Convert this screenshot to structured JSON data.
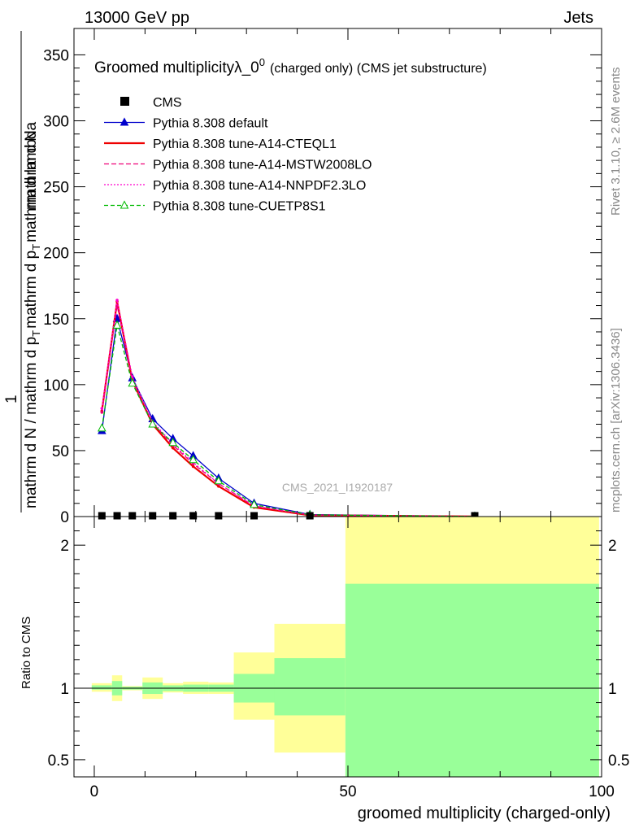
{
  "header": {
    "energy_label": "13000 GeV pp",
    "process_label": "Jets"
  },
  "side": {
    "rivet_label": "Rivet 3.1.10, ≥ 2.6M events",
    "mcplots_label": "mcplots.cern.ch [arXiv:1306.3436]"
  },
  "chart_data": {
    "type": "line",
    "title": "Groomed multiplicityλ_0",
    "title_sup": "0",
    "title_suffix": "(charged only) (CMS jet substructure)",
    "analysis_id": "CMS_2021_I1920187",
    "xlabel": "groomed multiplicity (charged-only)",
    "ylabel_parts": {
      "numerator": "mathrm d",
      "numerator_var": "N",
      "leading": "1",
      "denominator_1": "mathrm d N / mathrm d p",
      "denominator_sub": "T",
      "denominator_2": "mathrm d p",
      "denominator_sub2": "T",
      "denominator_3": "mathrm d lambda"
    },
    "xlim": [
      -4,
      100
    ],
    "ylim": [
      0,
      370
    ],
    "xticks": [
      0,
      50,
      100
    ],
    "xtick_labels": [
      "0",
      "50",
      "100"
    ],
    "yticks": [
      0,
      50,
      100,
      150,
      200,
      250,
      300,
      350
    ],
    "ytick_labels": [
      "0",
      "50",
      "100",
      "150",
      "200",
      "250",
      "300",
      "350"
    ],
    "x": [
      1.5,
      4.5,
      7.5,
      11.5,
      15.5,
      19.5,
      24.5,
      31.5,
      42.5,
      75
    ],
    "cms": [
      0.3,
      0.3,
      0.3,
      0.3,
      0.3,
      0.3,
      0.3,
      0.3,
      0.3,
      0.3
    ],
    "series": [
      {
        "name": "Pythia 8.308 default",
        "color": "#0000cc",
        "dash": "",
        "marker": "triangle-filled",
        "values": [
          65,
          150,
          105,
          74,
          59,
          46,
          29,
          10,
          1.5,
          0.1
        ]
      },
      {
        "name": "Pythia 8.308 tune-A14-CTEQL1",
        "color": "#ee0000",
        "dash": "",
        "marker": "none",
        "values": [
          80,
          163,
          103,
          70,
          52,
          38,
          23,
          7,
          1.0,
          0.1
        ]
      },
      {
        "name": "Pythia 8.308 tune-A14-MSTW2008LO",
        "color": "#ee0077",
        "dash": "6,3",
        "marker": "none",
        "values": [
          79,
          160,
          103,
          71,
          54,
          40,
          25,
          8,
          1.2,
          0.1
        ]
      },
      {
        "name": "Pythia 8.308 tune-A14-NNPDF2.3LO",
        "color": "#ff00cc",
        "dash": "2,2",
        "marker": "none",
        "values": [
          82,
          164,
          106,
          72,
          55,
          41,
          25,
          8,
          1.2,
          0.1
        ]
      },
      {
        "name": "Pythia 8.308 tune-CUETP8S1",
        "color": "#00bb00",
        "dash": "5,3",
        "marker": "triangle-open",
        "values": [
          67,
          145,
          101,
          70,
          56,
          43,
          27,
          9,
          1.3,
          0.1
        ]
      }
    ],
    "cms_label": "CMS",
    "ratio": {
      "ylabel": "Ratio to CMS",
      "ylim": [
        0.38,
        2.2
      ],
      "yticks": [
        0.5,
        1,
        2
      ],
      "ytick_labels": [
        "0.5",
        "1",
        "2"
      ],
      "bins": [
        {
          "lo": -0.5,
          "hi": 3.5,
          "y_lo": 0.975,
          "y_hi": 1.035,
          "g_lo": 0.99,
          "g_hi": 1.02
        },
        {
          "lo": 3.5,
          "hi": 5.5,
          "y_lo": 0.91,
          "y_hi": 1.09,
          "g_lo": 0.95,
          "g_hi": 1.05
        },
        {
          "lo": 5.5,
          "hi": 9.5,
          "y_lo": 0.985,
          "y_hi": 1.015,
          "g_lo": 0.99,
          "g_hi": 1.01
        },
        {
          "lo": 9.5,
          "hi": 13.5,
          "y_lo": 0.925,
          "y_hi": 1.075,
          "g_lo": 0.96,
          "g_hi": 1.04
        },
        {
          "lo": 13.5,
          "hi": 17.5,
          "y_lo": 0.97,
          "y_hi": 1.035,
          "g_lo": 0.98,
          "g_hi": 1.02
        },
        {
          "lo": 17.5,
          "hi": 22.5,
          "y_lo": 0.96,
          "y_hi": 1.045,
          "g_lo": 0.975,
          "g_hi": 1.025
        },
        {
          "lo": 22.5,
          "hi": 27.5,
          "y_lo": 0.96,
          "y_hi": 1.04,
          "g_lo": 0.975,
          "g_hi": 1.025
        },
        {
          "lo": 27.5,
          "hi": 35.5,
          "y_lo": 0.78,
          "y_hi": 1.25,
          "g_lo": 0.9,
          "g_hi": 1.1
        },
        {
          "lo": 35.5,
          "hi": 49.5,
          "y_lo": 0.55,
          "y_hi": 1.45,
          "g_lo": 0.81,
          "g_hi": 1.21
        },
        {
          "lo": 49.5,
          "hi": 99.5,
          "y_lo": 0.38,
          "y_hi": 2.2,
          "g_lo": 0.38,
          "g_hi": 1.73
        }
      ],
      "band_colors": {
        "outer": "#ffff99",
        "inner": "#99ff99"
      }
    }
  }
}
